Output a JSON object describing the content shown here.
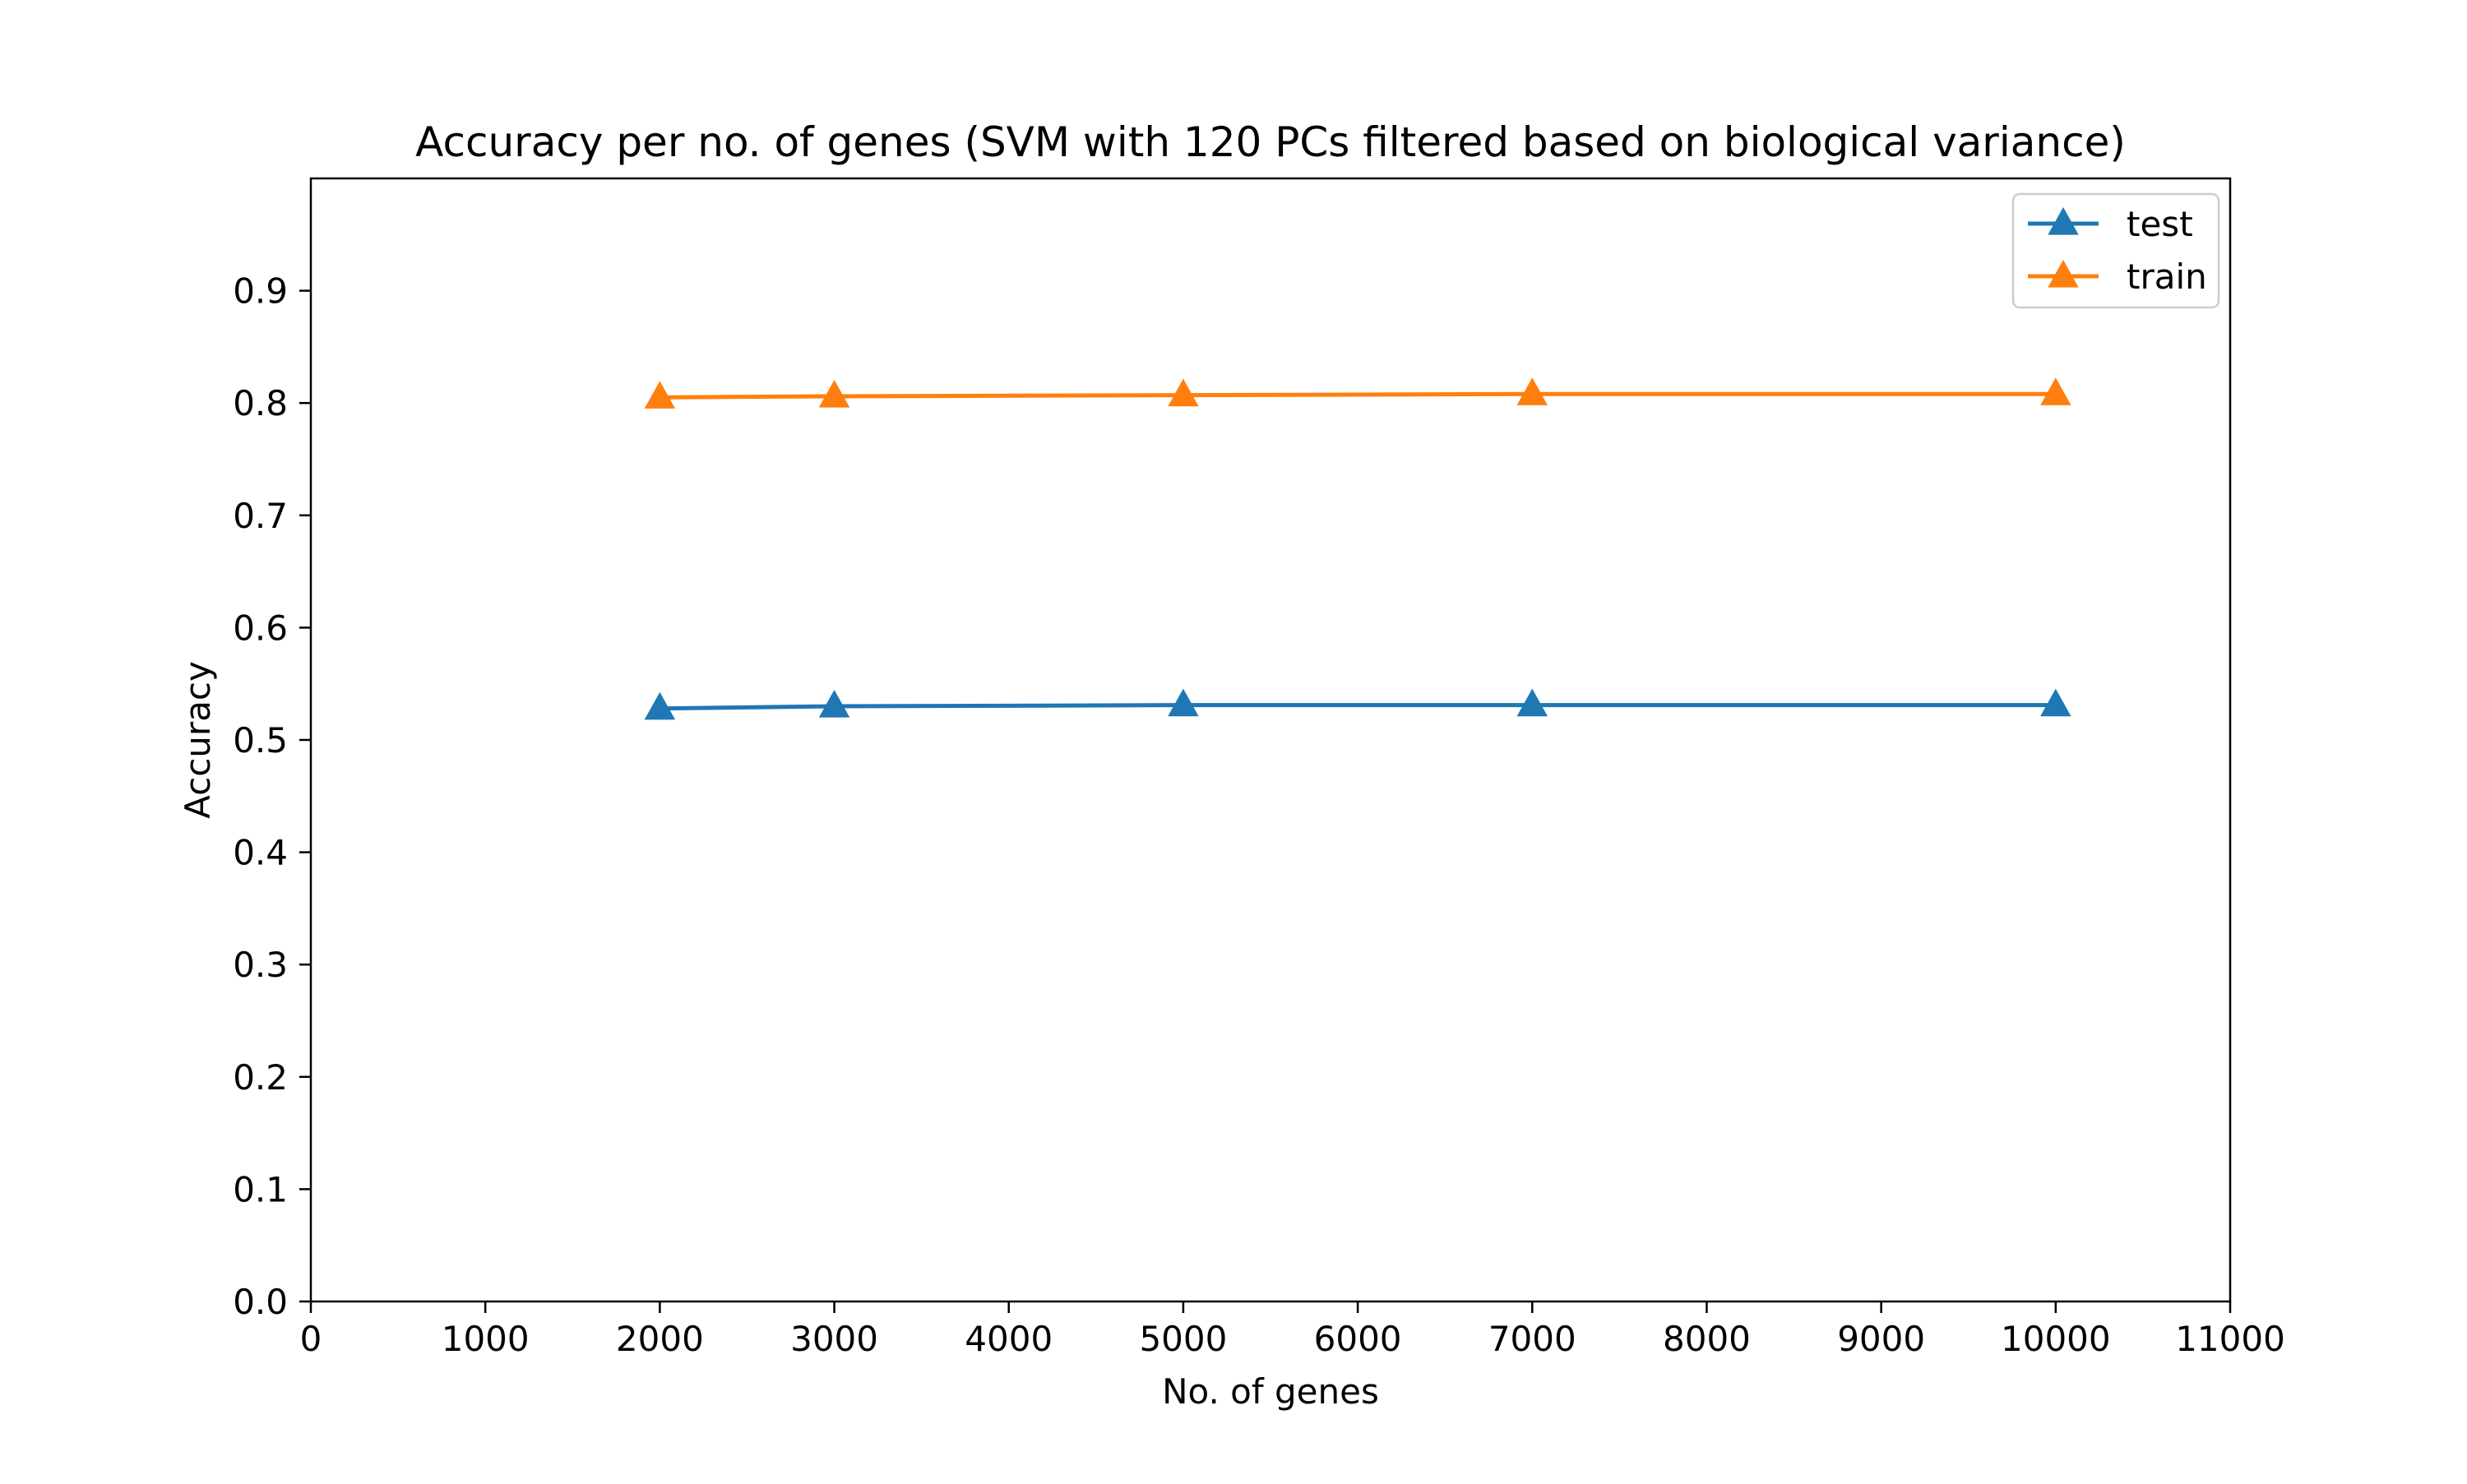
{
  "chart_data": {
    "type": "line",
    "title": "Accuracy per no. of genes (SVM with 120 PCs filtered based on biological variance)",
    "xlabel": "No. of genes",
    "ylabel": "Accuracy",
    "xlim": [
      0,
      11000
    ],
    "ylim": [
      0,
      1.0
    ],
    "xticks": [
      0,
      1000,
      2000,
      3000,
      4000,
      5000,
      6000,
      7000,
      8000,
      9000,
      10000,
      11000
    ],
    "yticks": [
      0.0,
      0.1,
      0.2,
      0.3,
      0.4,
      0.5,
      0.6,
      0.7,
      0.8,
      0.9
    ],
    "x": [
      2000,
      3000,
      5000,
      7000,
      10000
    ],
    "series": [
      {
        "name": "test",
        "color": "#1f77b4",
        "marker": "triangle-up",
        "values": [
          0.528,
          0.53,
          0.531,
          0.531,
          0.531
        ]
      },
      {
        "name": "train",
        "color": "#ff7f0e",
        "marker": "triangle-up",
        "values": [
          0.805,
          0.806,
          0.807,
          0.808,
          0.808
        ]
      }
    ],
    "grid": false,
    "legend_position": "top-right"
  }
}
